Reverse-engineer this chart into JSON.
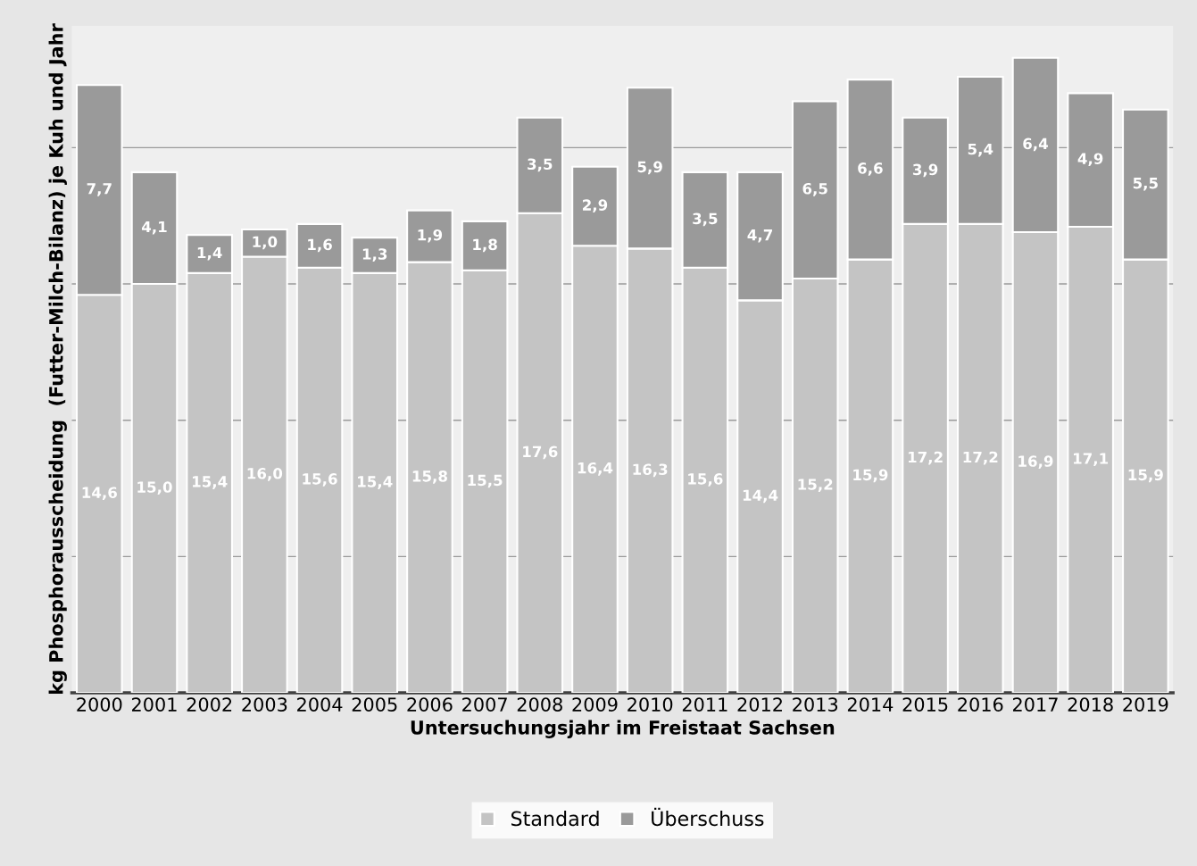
{
  "chart_data": {
    "type": "bar",
    "stacked": true,
    "xlabel": "Untersuchungsjahr im Freistaat Sachsen",
    "ylabel": "kg Phosphorausscheidung  (Futter-Milch-Bilanz) je Kuh und Jahr",
    "categories": [
      "2000",
      "2001",
      "2002",
      "2003",
      "2004",
      "2005",
      "2006",
      "2007",
      "2008",
      "2009",
      "2010",
      "2011",
      "2012",
      "2013",
      "2014",
      "2015",
      "2016",
      "2017",
      "2018",
      "2019"
    ],
    "series": [
      {
        "name": "Standard",
        "color": "#c4c4c4",
        "values": [
          14.6,
          15.0,
          15.4,
          16.0,
          15.6,
          15.4,
          15.8,
          15.5,
          17.6,
          16.4,
          16.3,
          15.6,
          14.4,
          15.2,
          15.9,
          17.2,
          17.2,
          16.9,
          17.1,
          15.9
        ],
        "value_labels": [
          "14,6",
          "15,0",
          "15,4",
          "16,0",
          "15,6",
          "15,4",
          "15,8",
          "15,5",
          "17,6",
          "16,4",
          "16,3",
          "15,6",
          "14,4",
          "15,2",
          "15,9",
          "17,2",
          "17,2",
          "16,9",
          "17,1",
          "15,9"
        ]
      },
      {
        "name": "Überschuss",
        "color": "#9a9a9a",
        "values": [
          7.7,
          4.1,
          1.4,
          1.0,
          1.6,
          1.3,
          1.9,
          1.8,
          3.5,
          2.9,
          5.9,
          3.5,
          4.7,
          6.5,
          6.6,
          3.9,
          5.4,
          6.4,
          4.9,
          5.5
        ],
        "value_labels": [
          "7,7",
          "4,1",
          "1,4",
          "1,0",
          "1,6",
          "1,3",
          "1,9",
          "1,8",
          "3,5",
          "2,9",
          "5,9",
          "3,5",
          "4,7",
          "6,5",
          "6,6",
          "3,9",
          "5,4",
          "6,4",
          "4,9",
          "5,5"
        ]
      }
    ],
    "tick_labels": "x",
    "grid": "y",
    "legend": "bottom"
  }
}
